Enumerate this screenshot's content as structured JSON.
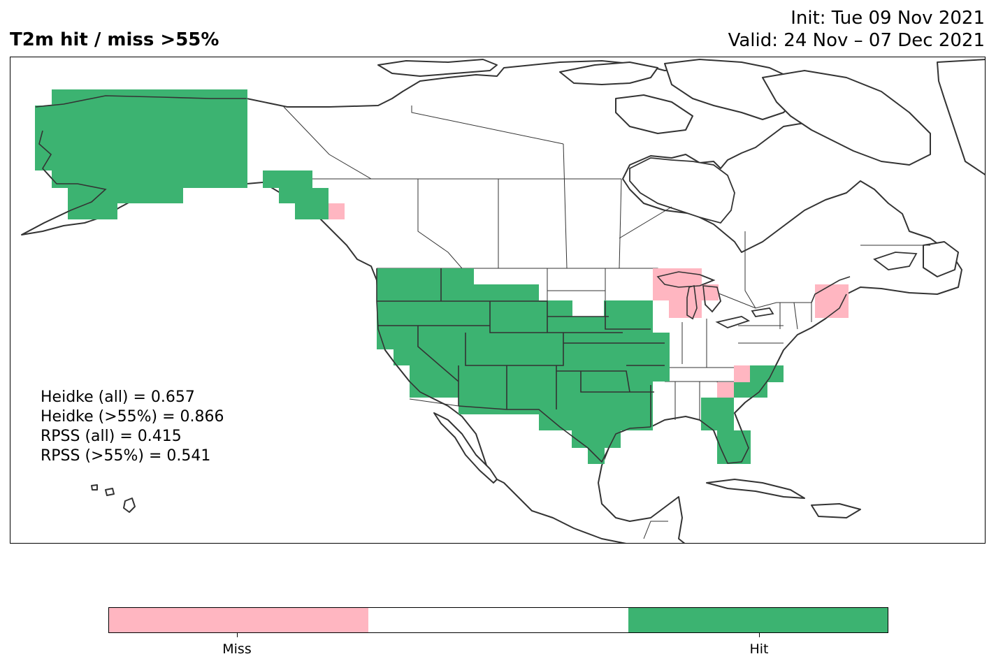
{
  "title": "T2m hit / miss  >55%",
  "init": "Init: Tue 09 Nov 2021",
  "valid": "Valid: 24 Nov – 07 Dec 2021",
  "scores": [
    "Heidke (all) = 0.657",
    "Heidke (>55%) = 0.866",
    "RPSS (all) = 0.415",
    "RPSS (>55%) = 0.541"
  ],
  "colorbar": {
    "labels": [
      "Miss",
      "Hit"
    ],
    "colors": [
      "#ffb6c1",
      "#ffffff",
      "#3cb371"
    ]
  },
  "colors": {
    "hit": "#3cb371",
    "miss": "#ffb6c1",
    "border": "#333333"
  }
}
